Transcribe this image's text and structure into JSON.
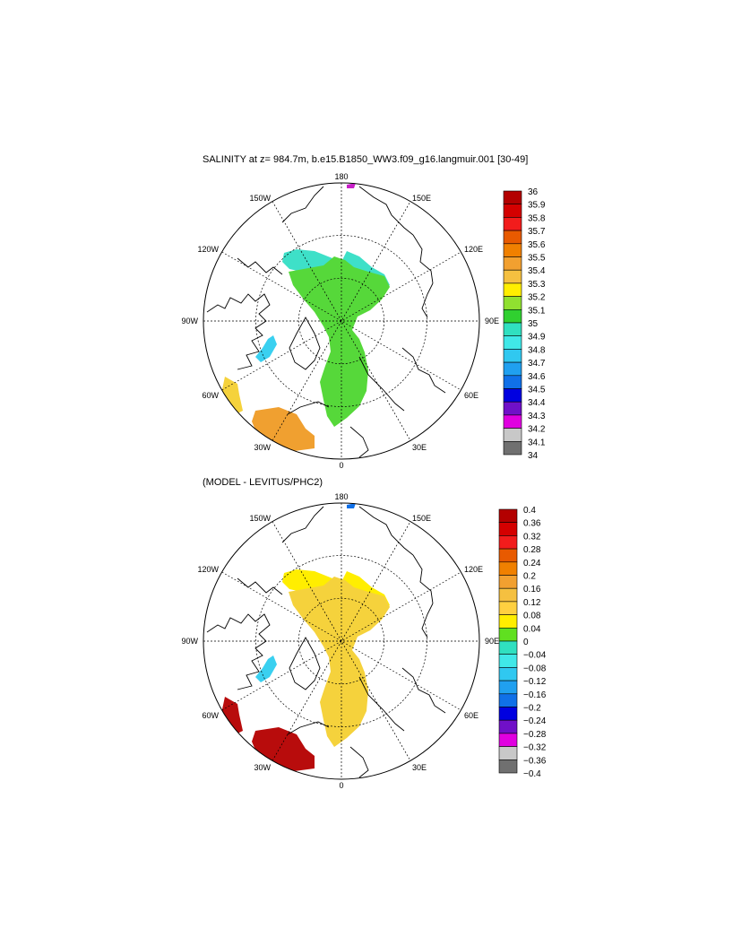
{
  "panels": [
    {
      "title": "SALINITY at z= 984.7m, b.e15.B1850_WW3.f09_g16.langmuir.001 [30-49]",
      "lon_labels": {
        "top": "180",
        "bottom": "0",
        "left": "90W",
        "right": "90E",
        "ul1": "150W",
        "ul2": "120W",
        "ur1": "150E",
        "ur2": "120E",
        "ll1": "60W",
        "ll2": "30W",
        "lr1": "60E",
        "lr2": "30E"
      },
      "colorbar": {
        "labels": [
          "36",
          "35.9",
          "35.8",
          "35.7",
          "35.6",
          "35.5",
          "35.4",
          "35.3",
          "35.2",
          "35.1",
          "35",
          "34.9",
          "34.8",
          "34.7",
          "34.6",
          "34.5",
          "34.4",
          "34.3",
          "34.2",
          "34.1",
          "34"
        ],
        "colors": [
          "#b30000",
          "#d40000",
          "#f21c1c",
          "#e85a00",
          "#f08000",
          "#f2a030",
          "#f5c040",
          "#ffee00",
          "#90e030",
          "#30d030",
          "#30e0c0",
          "#40e8e8",
          "#30c8f0",
          "#20a0f0",
          "#1070e8",
          "#0000e0",
          "#7010c8",
          "#e000e0",
          "#c8c8c8",
          "#707070"
        ]
      },
      "regions": {
        "central": "#56d83a",
        "pacific": "#3ee0c8",
        "atlantic": "#56d83a",
        "baffin": "#3ad0f0",
        "labrador": "#f5d23c",
        "irminger": "#f0a030",
        "bering": "#c820c8"
      }
    },
    {
      "title": "(MODEL - LEVITUS/PHC2)",
      "lon_labels": {
        "top": "180",
        "bottom": "0",
        "left": "90W",
        "right": "90E",
        "ul1": "150W",
        "ul2": "120W",
        "ur1": "150E",
        "ur2": "120E",
        "ll1": "60W",
        "ll2": "30W",
        "lr1": "60E",
        "lr2": "30E"
      },
      "colorbar": {
        "labels": [
          "0.4",
          "0.36",
          "0.32",
          "0.28",
          "0.24",
          "0.2",
          "0.16",
          "0.12",
          "0.08",
          "0.04",
          "0",
          "−0.04",
          "−0.08",
          "−0.12",
          "−0.16",
          "−0.2",
          "−0.24",
          "−0.28",
          "−0.32",
          "−0.36",
          "−0.4"
        ],
        "colors": [
          "#b30000",
          "#d40000",
          "#f21c1c",
          "#e85a00",
          "#f08000",
          "#f2a030",
          "#f5c040",
          "#ffd040",
          "#ffee00",
          "#60e020",
          "#30e0c0",
          "#40e8e8",
          "#30c8f0",
          "#20a0f0",
          "#1070e8",
          "#0000e0",
          "#7010c8",
          "#e000e0",
          "#c8c8c8",
          "#707070"
        ]
      },
      "regions": {
        "central": "#f5d23c",
        "pacific": "#ffee00",
        "atlantic": "#f08c1e",
        "baffin": "#3ad0f0",
        "labrador": "#b80c0c",
        "irminger": "#b80c0c",
        "bering": "#1070e8"
      }
    }
  ]
}
